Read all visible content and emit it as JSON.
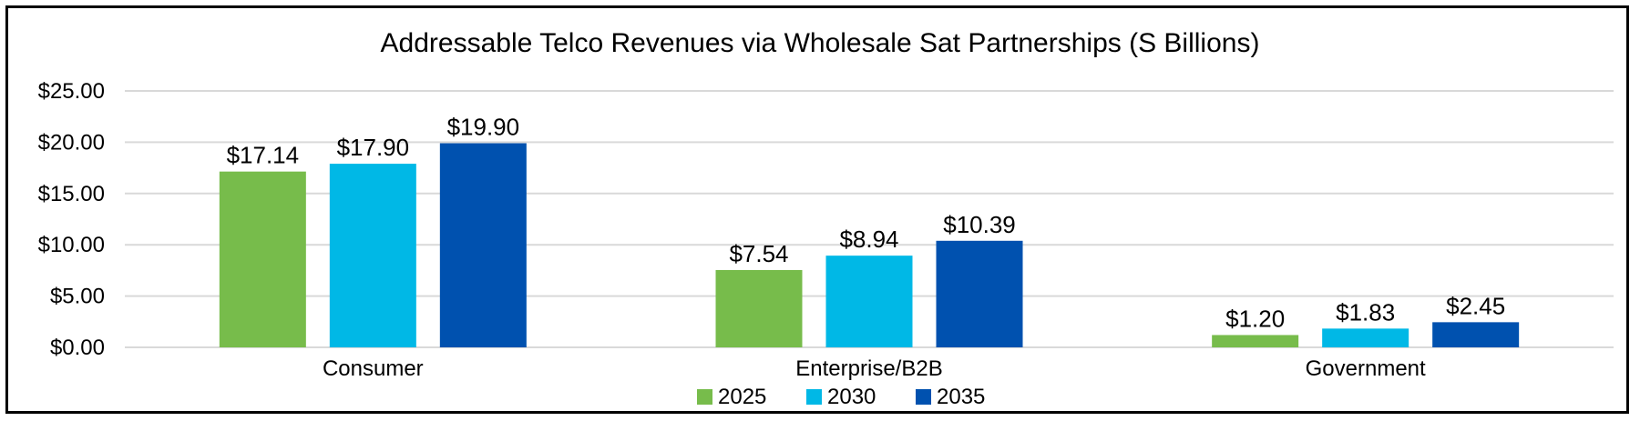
{
  "chart_data": {
    "type": "bar",
    "title": "Addressable Telco Revenues via Wholesale Sat Partnerships (S Billions)",
    "xlabel": "",
    "ylabel": "",
    "ylim": [
      0,
      25
    ],
    "yticks": [
      "$0.00",
      "$5.00",
      "$10.00",
      "$15.00",
      "$20.00",
      "$25.00"
    ],
    "ytick_values": [
      0,
      5,
      10,
      15,
      20,
      25
    ],
    "categories": [
      "Consumer",
      "Enterprise/B2B",
      "Government"
    ],
    "series": [
      {
        "name": "2025",
        "color": "#77bc4b",
        "values": [
          17.14,
          7.54,
          1.2
        ],
        "labels": [
          "$17.14",
          "$7.54",
          "$1.20"
        ]
      },
      {
        "name": "2030",
        "color": "#00b8e6",
        "values": [
          17.9,
          8.94,
          1.83
        ],
        "labels": [
          "$17.90",
          "$8.94",
          "$1.83"
        ]
      },
      {
        "name": "2035",
        "color": "#0051af",
        "values": [
          19.9,
          10.39,
          2.45
        ],
        "labels": [
          "$19.90",
          "$10.39",
          "$2.45"
        ]
      }
    ],
    "grid": true,
    "legend_position": "bottom"
  }
}
